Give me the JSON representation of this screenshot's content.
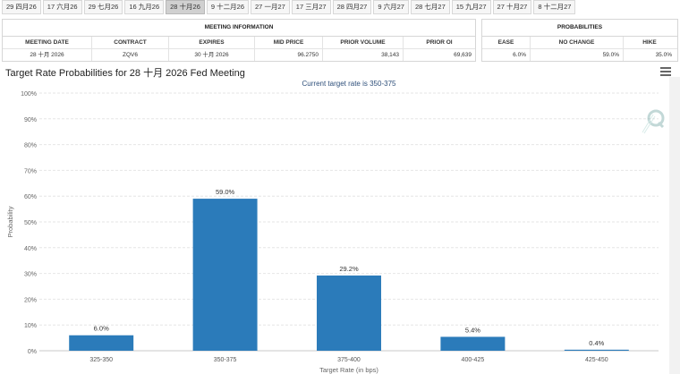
{
  "tabs": [
    "29 四月26",
    "17 六月26",
    "29 七月26",
    "16 九月26",
    "28 十月26",
    "9 十二月26",
    "27 一月27",
    "17 三月27",
    "28 四月27",
    "9 六月27",
    "28 七月27",
    "15 九月27",
    "27 十月27",
    "8 十二月27"
  ],
  "active_tab": 4,
  "meeting_info": {
    "header": "MEETING INFORMATION",
    "columns": [
      "MEETING DATE",
      "CONTRACT",
      "EXPIRES",
      "MID PRICE",
      "PRIOR VOLUME",
      "PRIOR OI"
    ],
    "values": [
      "28 十月 2026",
      "ZQV6",
      "30 十月 2026",
      "96.2750",
      "38,143",
      "69,639"
    ]
  },
  "probabilities": {
    "header": "PROBABILITIES",
    "columns": [
      "EASE",
      "NO CHANGE",
      "HIKE"
    ],
    "values": [
      "6.0%",
      "59.0%",
      "35.0%"
    ]
  },
  "chart_title": "Target Rate Probabilities for 28 十月 2026 Fed Meeting",
  "chart_data": {
    "type": "bar",
    "subtitle": "Current target rate is 350-375",
    "categories": [
      "325-350",
      "350-375",
      "375-400",
      "400-425",
      "425-450"
    ],
    "values": [
      6.0,
      59.0,
      29.2,
      5.4,
      0.4
    ],
    "data_labels": [
      "6.0%",
      "59.0%",
      "29.2%",
      "5.4%",
      "0.4%"
    ],
    "xlabel": "Target Rate (in bps)",
    "ylabel": "Probability",
    "ylim": [
      0,
      100
    ],
    "yticks": [
      "0%",
      "10%",
      "20%",
      "30%",
      "40%",
      "50%",
      "60%",
      "70%",
      "80%",
      "90%",
      "100%"
    ],
    "grid": true,
    "bar_color": "#2b7bba"
  }
}
